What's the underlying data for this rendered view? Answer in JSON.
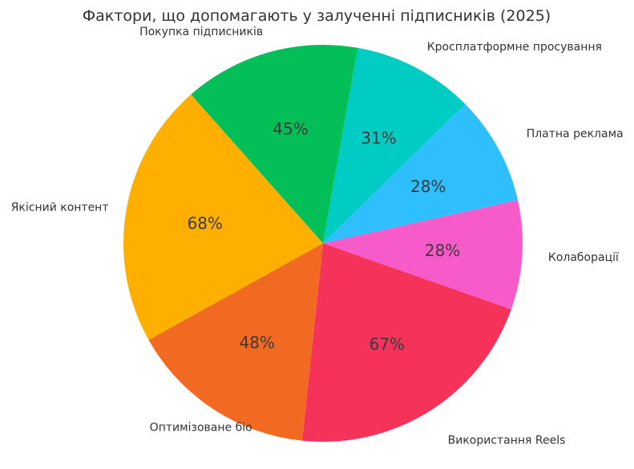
{
  "chart_data": {
    "type": "pie",
    "title": "Фактори, що допомагають у залученні підписників (2025)",
    "categories": [
      "Кросплатформне просування",
      "Платна реклама",
      "Колаборації",
      "Використання Reels",
      "Оптимізоване біо",
      "Якісний контент",
      "Покупка підписників"
    ],
    "values": [
      31,
      28,
      28,
      67,
      48,
      68,
      45
    ],
    "labels": [
      "31%",
      "28%",
      "28%",
      "67%",
      "48%",
      "68%",
      "45%"
    ],
    "colors": [
      "#00CCC4",
      "#2FBFFF",
      "#F75BC9",
      "#F5335A",
      "#F26A22",
      "#FFAF00",
      "#04BF58"
    ],
    "start_angle_deg": 80,
    "direction": "clockwise",
    "legend": "none"
  }
}
